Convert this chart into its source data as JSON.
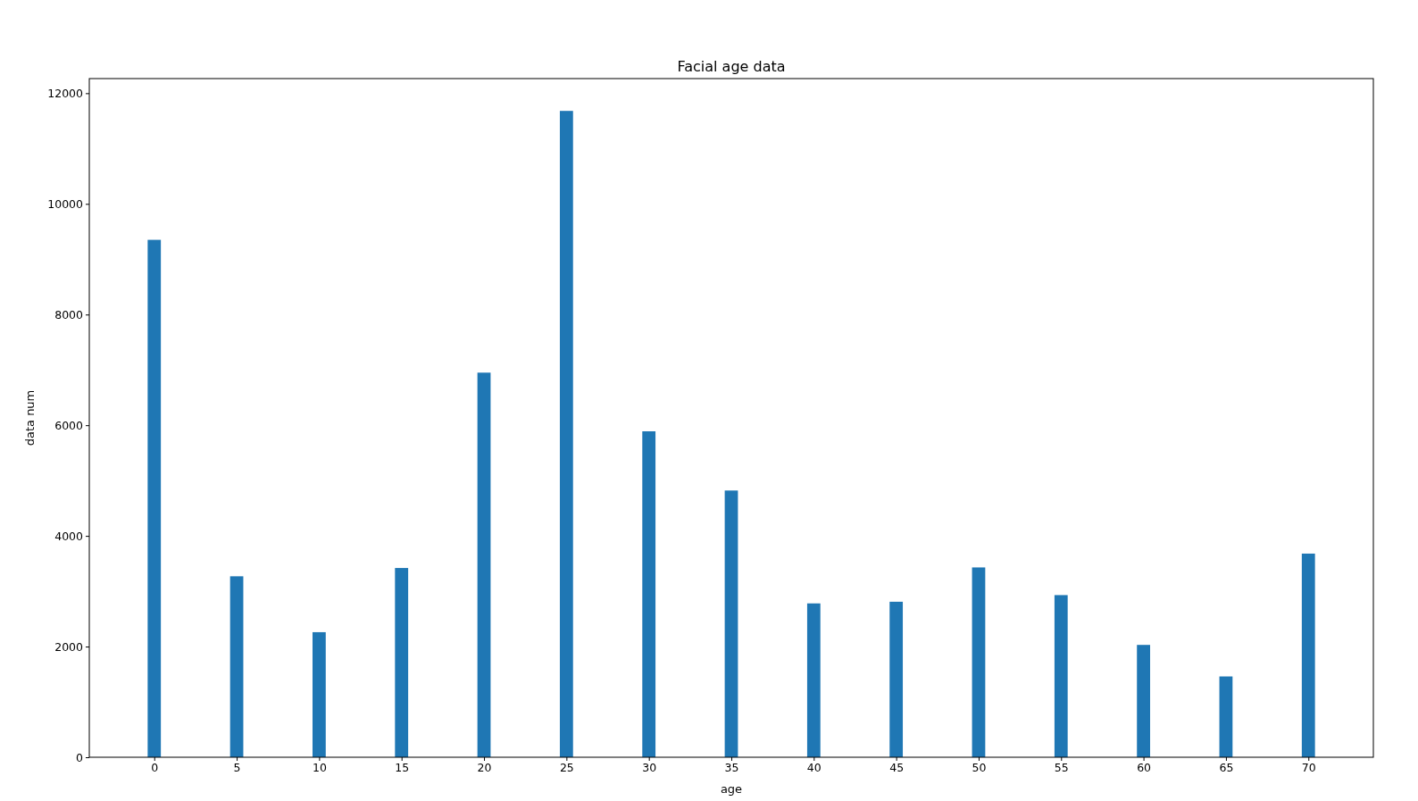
{
  "chart_data": {
    "type": "bar",
    "title": "Facial age data",
    "xlabel": "age",
    "ylabel": "data num",
    "x": [
      0,
      5,
      10,
      15,
      20,
      25,
      30,
      35,
      40,
      45,
      50,
      55,
      60,
      65,
      70
    ],
    "values": [
      9350,
      3270,
      2260,
      3420,
      6950,
      11680,
      5890,
      4820,
      2780,
      2810,
      3430,
      2930,
      2030,
      1460,
      3680
    ],
    "color": "#1f77b4",
    "xlim": [
      -3.94,
      73.94
    ],
    "xticks": [
      0,
      5,
      10,
      15,
      20,
      25,
      30,
      35,
      40,
      45,
      50,
      55,
      60,
      65,
      70
    ],
    "ylim": [
      0,
      12264
    ],
    "yticks": [
      0,
      2000,
      4000,
      6000,
      8000,
      10000,
      12000
    ]
  }
}
